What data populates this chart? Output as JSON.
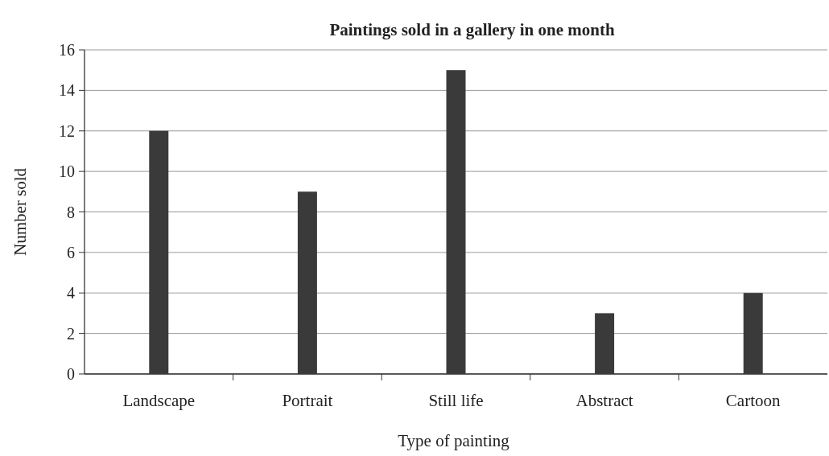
{
  "chart_data": {
    "type": "bar",
    "title": "Paintings sold in a gallery in one month",
    "xlabel": "Type of painting",
    "ylabel": "Number sold",
    "categories": [
      "Landscape",
      "Portrait",
      "Still life",
      "Abstract",
      "Cartoon"
    ],
    "values": [
      12,
      9,
      15,
      3,
      4
    ],
    "color": "#3a3a3a",
    "ylim": [
      0,
      16
    ],
    "yticks": [
      0,
      2,
      4,
      6,
      8,
      10,
      12,
      14,
      16
    ],
    "grid": "y"
  }
}
